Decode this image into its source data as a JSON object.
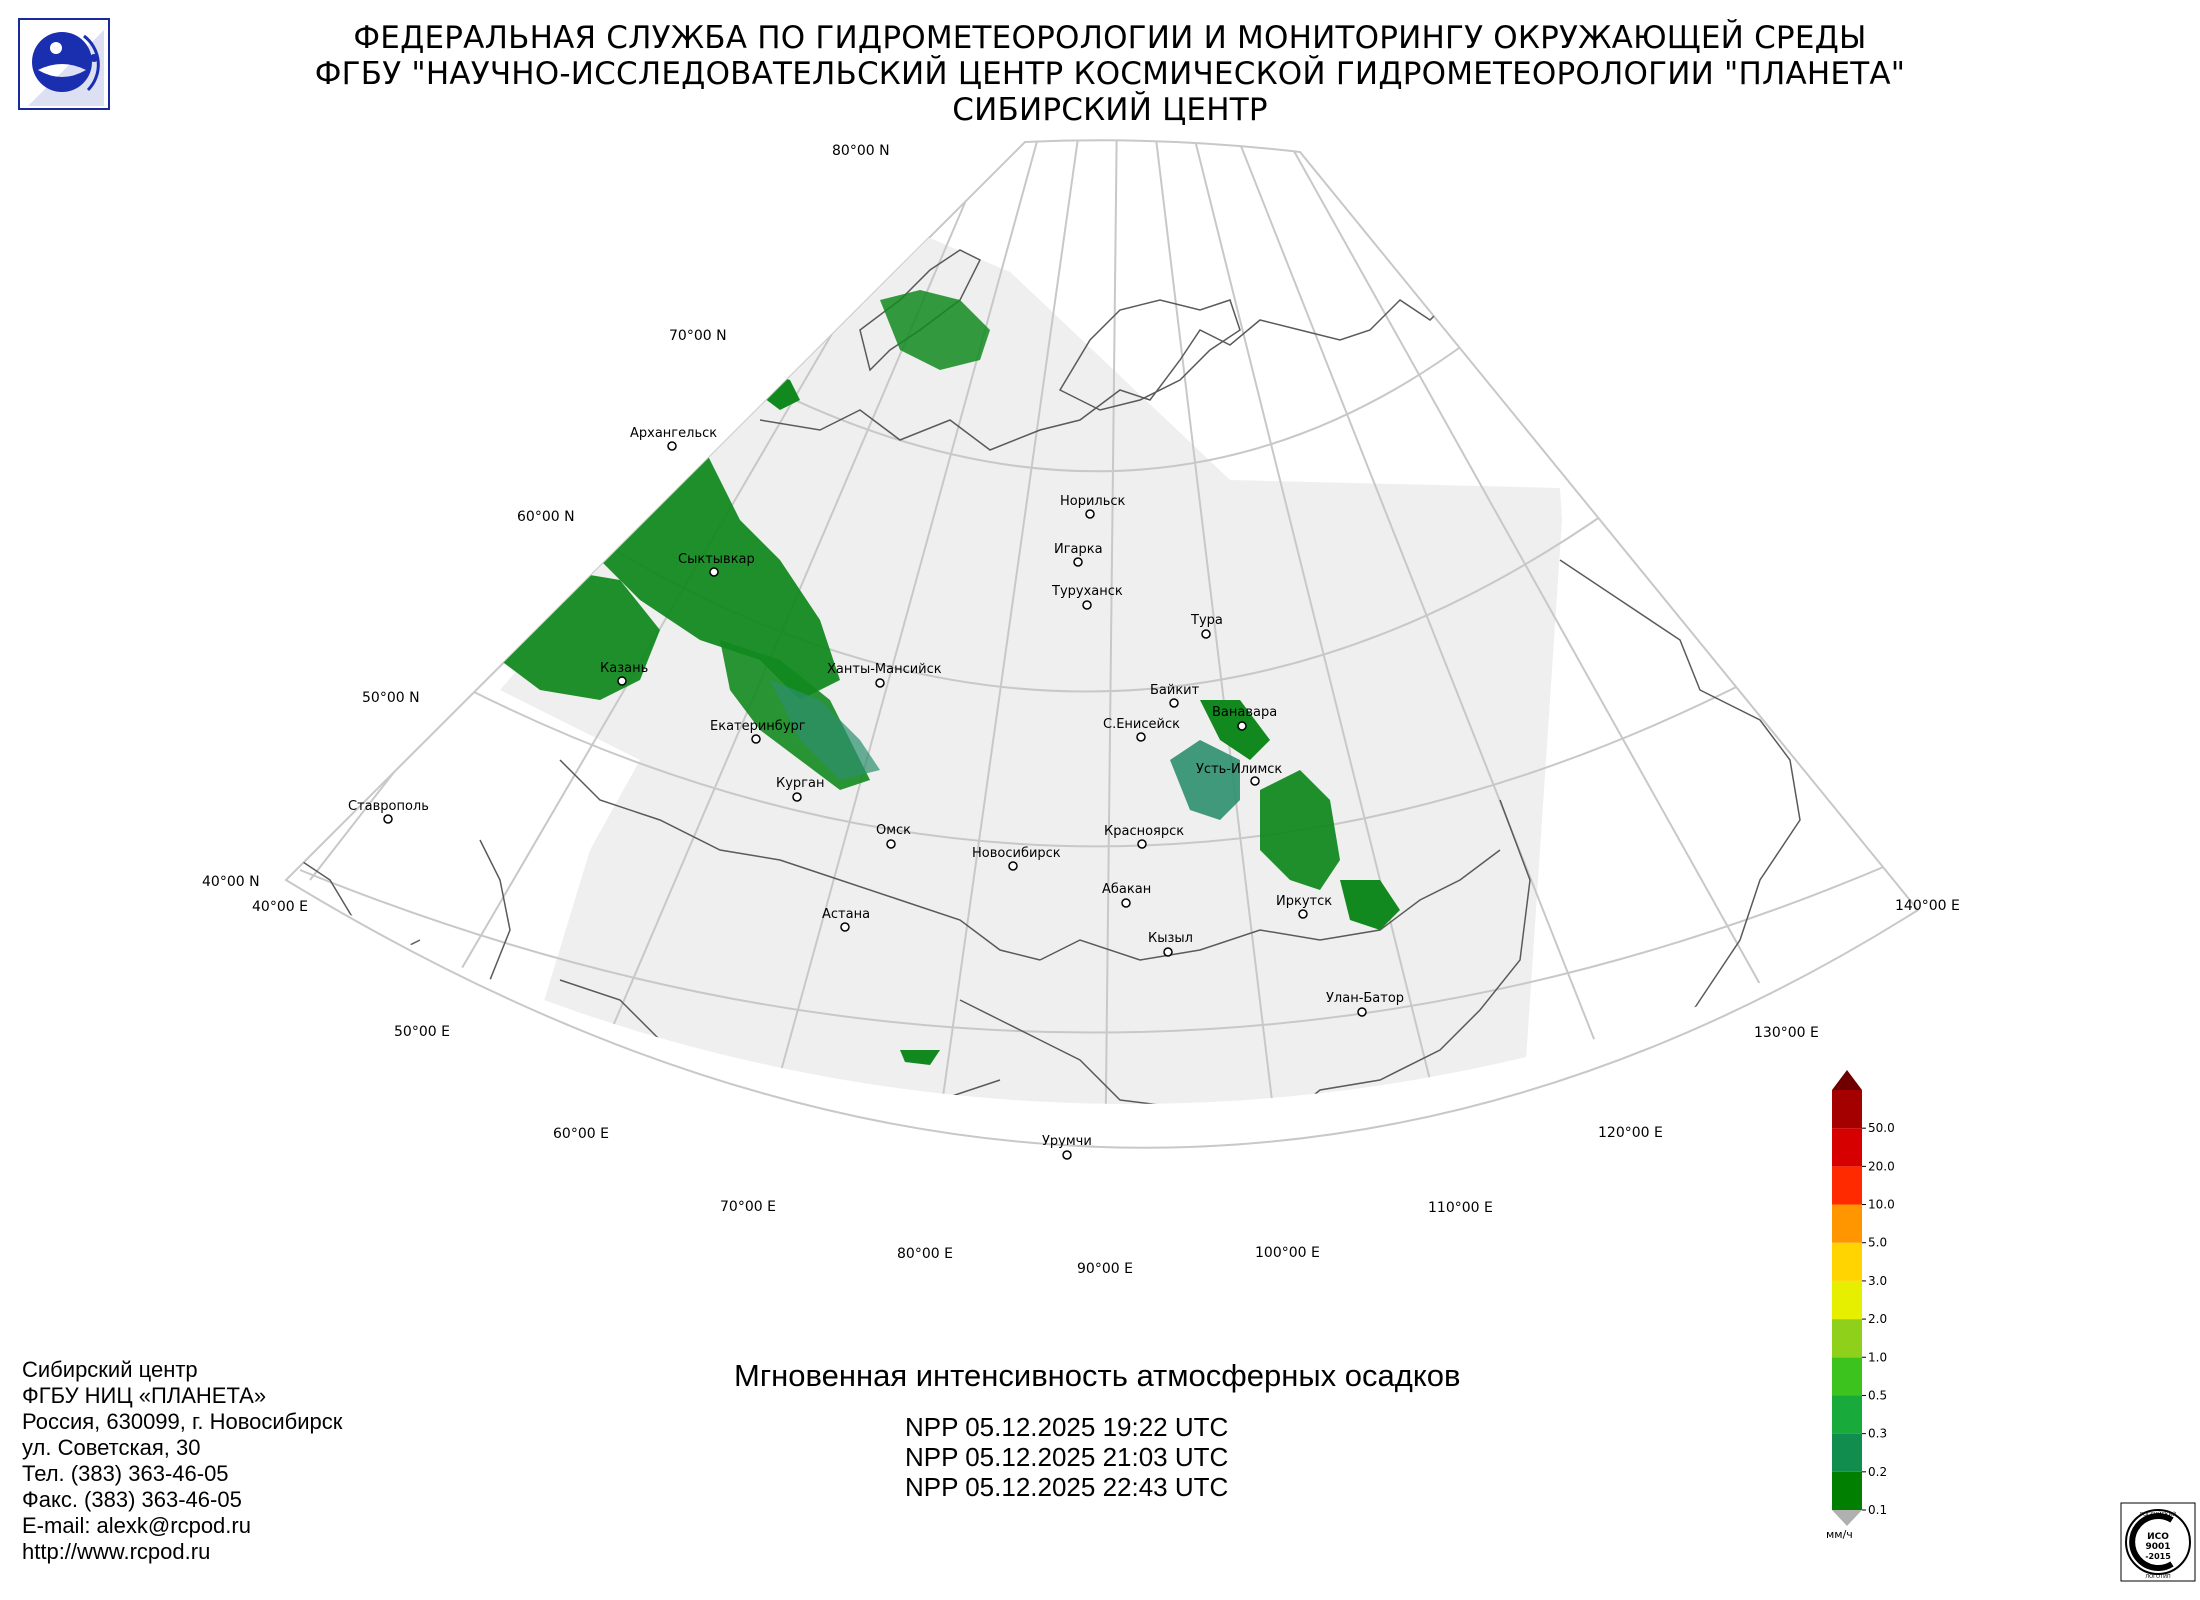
{
  "header": {
    "line1": "ФЕДЕРАЛЬНАЯ СЛУЖБА ПО ГИДРОМЕТЕОРОЛОГИИ И МОНИТОРИНГУ ОКРУЖАЮЩЕЙ СРЕДЫ",
    "line2": "ФГБУ \"НАУЧНО-ИССЛЕДОВАТЕЛЬСКИЙ ЦЕНТР КОСМИЧЕСКОЙ ГИДРОМЕТЕОРОЛОГИИ \"ПЛАНЕТА\"",
    "line3": "СИБИРСКИЙ ЦЕНТР"
  },
  "logo_icon": "roshydromet-globe-icon",
  "grid_labels": {
    "lat_80": "80°00 N",
    "lat_70": "70°00 N",
    "lat_60": "60°00 N",
    "lat_50": "50°00 N",
    "lat_40": "40°00 N",
    "lon_40": "40°00 E",
    "lon_50": "50°00 E",
    "lon_60": "60°00 E",
    "lon_70": "70°00 E",
    "lon_80": "80°00 E",
    "lon_90": "90°00 E",
    "lon_100": "100°00 E",
    "lon_110": "110°00 E",
    "lon_120": "120°00 E",
    "lon_130": "130°00 E",
    "lon_140": "140°00 E"
  },
  "cities": [
    {
      "name": "Архангельск"
    },
    {
      "name": "Сыктывкар"
    },
    {
      "name": "Казань"
    },
    {
      "name": "Ханты-Мансийск"
    },
    {
      "name": "Екатеринбург"
    },
    {
      "name": "Курган"
    },
    {
      "name": "Ставрополь"
    },
    {
      "name": "Омск"
    },
    {
      "name": "Новосибирск"
    },
    {
      "name": "Астана"
    },
    {
      "name": "Норильск"
    },
    {
      "name": "Игарка"
    },
    {
      "name": "Туруханск"
    },
    {
      "name": "Тура"
    },
    {
      "name": "Байкит"
    },
    {
      "name": "Ванавара"
    },
    {
      "name": "С.Енисейск"
    },
    {
      "name": "Усть-Илимск"
    },
    {
      "name": "Красноярск"
    },
    {
      "name": "Абакан"
    },
    {
      "name": "Кызыл"
    },
    {
      "name": "Иркутск"
    },
    {
      "name": "Улан-Батор"
    },
    {
      "name": "Урумчи"
    }
  ],
  "product": {
    "title": "Мгновенная интенсивность атмосферных осадков",
    "passes": [
      "NPP 05.12.2025  19:22 UTC",
      "NPP 05.12.2025  21:03 UTC",
      "NPP 05.12.2025  22:43 UTC"
    ]
  },
  "contacts": [
    "Сибирский центр",
    "ФГБУ НИЦ «ПЛАНЕТА»",
    "Россия, 630099, г. Новосибирск",
    "ул. Советская, 30",
    "Тел. (383) 363-46-05",
    "Факс. (383) 363-46-05",
    "E-mail: alexk@rcpod.ru",
    "http://www.rcpod.ru"
  ],
  "legend": {
    "unit": "мм/ч",
    "levels": [
      "0.1",
      "0.2",
      "0.3",
      "0.5",
      "1.0",
      "2.0",
      "3.0",
      "5.0",
      "10.0",
      "20.0",
      "50.0"
    ],
    "colors": [
      "#007f00",
      "#118e4e",
      "#19aa3c",
      "#3cc31e",
      "#8fd11a",
      "#e6ef00",
      "#ffd400",
      "#ff9600",
      "#ff2a00",
      "#d60000",
      "#a50000"
    ],
    "under_color": "#b0b0b0",
    "over_color": "#6e0000"
  },
  "iso_badge": {
    "top": "ИСО",
    "num": "9001",
    "year": "-2015",
    "ring_top": "РОССИЙСКИЙ",
    "ring_bottom": "ЛОГОТИП"
  },
  "colors": {
    "coverage": "#efefef",
    "grid": "#c8c8c8",
    "coast": "#5a5a5a",
    "precip_main": "#12891f",
    "precip_light": "#2fa344",
    "precip_teal": "#2c8f6e"
  }
}
